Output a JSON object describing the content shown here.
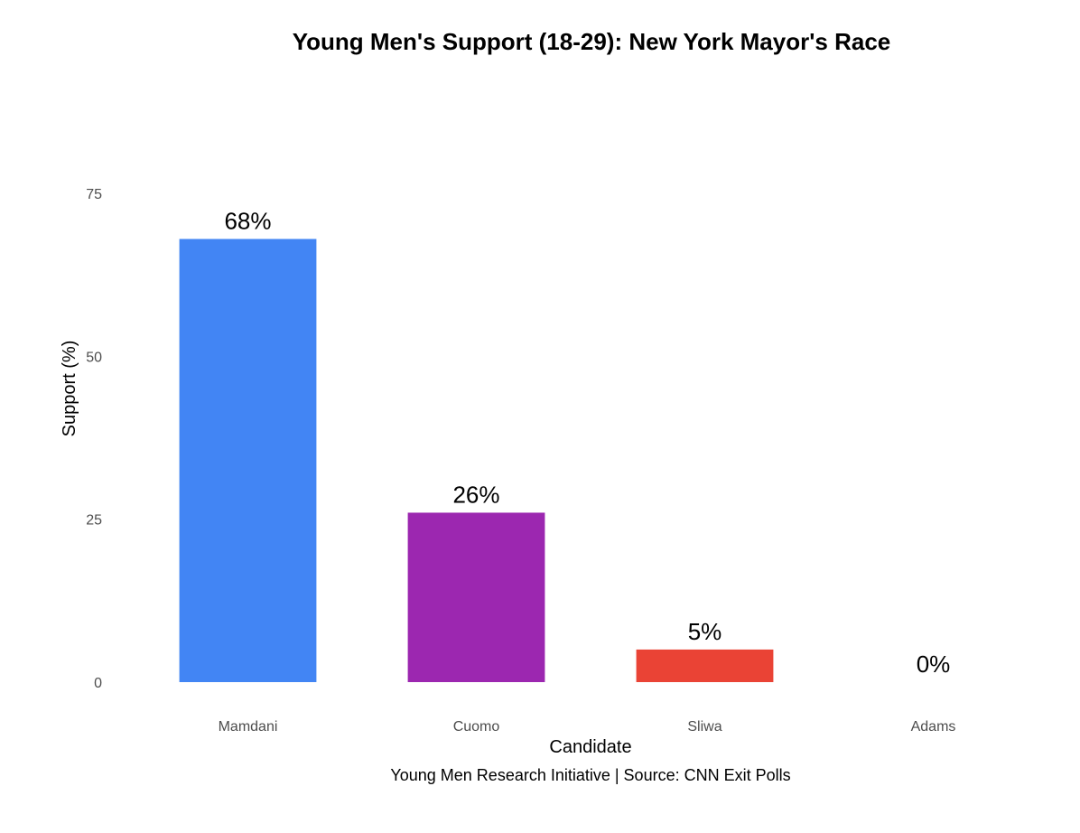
{
  "chart_data": {
    "type": "bar",
    "title": "Young Men's Support (18-29): New York Mayor's Race",
    "xlabel": "Candidate",
    "ylabel": "Support (%)",
    "caption": "Young Men Research Initiative | Source: CNN Exit Polls",
    "categories": [
      "Mamdani",
      "Cuomo",
      "Sliwa",
      "Adams"
    ],
    "values": [
      68,
      26,
      5,
      0
    ],
    "value_labels": [
      "68%",
      "26%",
      "5%",
      "0%"
    ],
    "colors": [
      "#4285F4",
      "#9C27B0",
      "#EA4335",
      "#FBBC05"
    ],
    "ylim": [
      0,
      75
    ],
    "yticks": [
      0,
      25,
      50,
      75
    ],
    "ytick_labels": [
      "0",
      "25",
      "50",
      "75"
    ],
    "grid": false,
    "legend": "none"
  }
}
